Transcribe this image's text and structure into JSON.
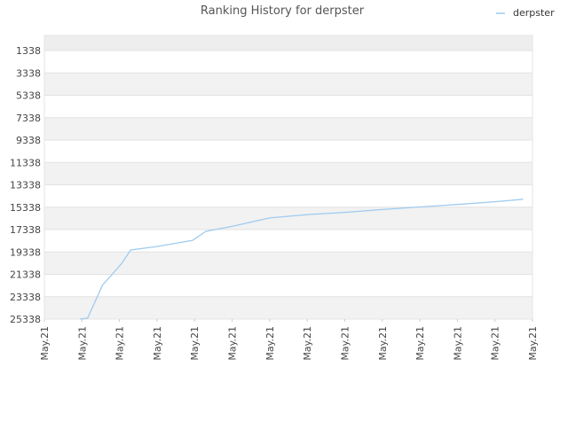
{
  "chart_data": {
    "type": "line",
    "title": "Ranking History for derpster",
    "xlabel": "",
    "ylabel": "",
    "y_inverted": true,
    "ylim": [
      1338,
      25338
    ],
    "y_ticks": [
      1338,
      3338,
      5338,
      7338,
      9338,
      11338,
      13338,
      15338,
      17338,
      19338,
      21338,
      23338,
      25338
    ],
    "x_tick_labels": [
      "May.21",
      "May.21",
      "May.21",
      "May.21",
      "May.21",
      "May.21",
      "May.21",
      "May.21",
      "May.21",
      "May.21",
      "May.21",
      "May.21",
      "May.21",
      "May.21"
    ],
    "grid": true,
    "legend_placement": "top-right",
    "series": [
      {
        "name": "derpster",
        "color": "#9ecbf0",
        "x": [
          0.95,
          1.15,
          1.55,
          2.05,
          2.3,
          3.0,
          3.95,
          4.3,
          5.0,
          6.0,
          7.0,
          8.0,
          9.0,
          10.0,
          11.0,
          12.0,
          12.75
        ],
        "y": [
          25338,
          25250,
          22300,
          20400,
          19160,
          18850,
          18300,
          17500,
          17050,
          16300,
          16000,
          15800,
          15550,
          15320,
          15100,
          14850,
          14630
        ]
      }
    ]
  }
}
